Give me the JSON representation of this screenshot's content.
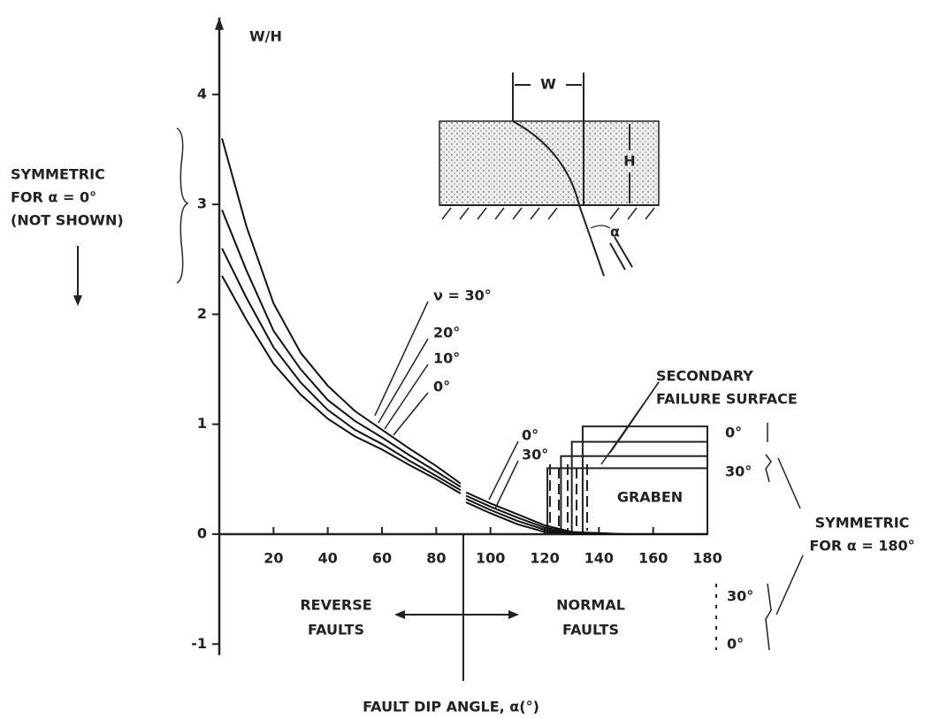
{
  "chart_data": {
    "type": "line",
    "x_label": "FAULT DIP ANGLE, α(°)",
    "y_label": "W/H",
    "x": [
      1,
      10,
      20,
      30,
      40,
      50,
      60,
      70,
      80,
      89,
      90,
      91,
      100,
      110,
      120,
      130,
      140,
      150,
      160,
      170,
      180
    ],
    "xlim": [
      0,
      180
    ],
    "xticks": [
      20,
      40,
      60,
      80,
      100,
      120,
      140,
      160,
      180
    ],
    "ylim": [
      -1.1,
      4.7
    ],
    "yticks": [
      -1,
      0,
      1,
      2,
      3,
      4
    ],
    "series": [
      {
        "name": "ν = 30°",
        "color": "#111111",
        "values": [
          3.6,
          2.8,
          2.1,
          1.65,
          1.35,
          1.12,
          0.95,
          0.78,
          0.62,
          0.46,
          null,
          0.38,
          0.28,
          0.18,
          0.08,
          0.02,
          0.01,
          0,
          0,
          0,
          0
        ]
      },
      {
        "name": "20°",
        "color": "#111111",
        "values": [
          2.95,
          2.4,
          1.85,
          1.5,
          1.22,
          1.03,
          0.88,
          0.72,
          0.57,
          0.43,
          null,
          0.35,
          0.25,
          0.15,
          0.06,
          0.01,
          0,
          0,
          0,
          0,
          0
        ]
      },
      {
        "name": "10°",
        "color": "#111111",
        "values": [
          2.6,
          2.15,
          1.7,
          1.38,
          1.13,
          0.95,
          0.82,
          0.67,
          0.53,
          0.4,
          null,
          0.32,
          0.22,
          0.12,
          0.04,
          0,
          0,
          0,
          0,
          0,
          0
        ]
      },
      {
        "name": "0°",
        "color": "#111111",
        "values": [
          2.35,
          1.95,
          1.55,
          1.27,
          1.05,
          0.89,
          0.77,
          0.63,
          0.5,
          0.37,
          null,
          0.29,
          0.19,
          0.09,
          0.02,
          0,
          0,
          0,
          0,
          0,
          0
        ]
      }
    ],
    "normal_labels": [
      "0°",
      "30°"
    ],
    "graben": {
      "label": "GRABEN",
      "x_start": [
        121,
        126,
        130,
        134
      ],
      "top": [
        0.6,
        0.71,
        0.84,
        0.98
      ]
    },
    "secondary_label": [
      "SECONDARY",
      "FAILURE SURFACE"
    ],
    "symmetric_0": [
      "SYMMETRIC",
      "FOR α = 0°",
      "(NOT SHOWN)"
    ],
    "symmetric_180": [
      "SYMMETRIC",
      "FOR α = 180°"
    ],
    "right_levels": [
      "0°",
      "30°"
    ],
    "bottom_levels": [
      "30°",
      "0°"
    ],
    "reverse": [
      "REVERSE",
      "FAULTS"
    ],
    "normal": [
      "NORMAL",
      "FAULTS"
    ],
    "inset": {
      "w": "W",
      "h": "H",
      "alpha": "α"
    }
  }
}
